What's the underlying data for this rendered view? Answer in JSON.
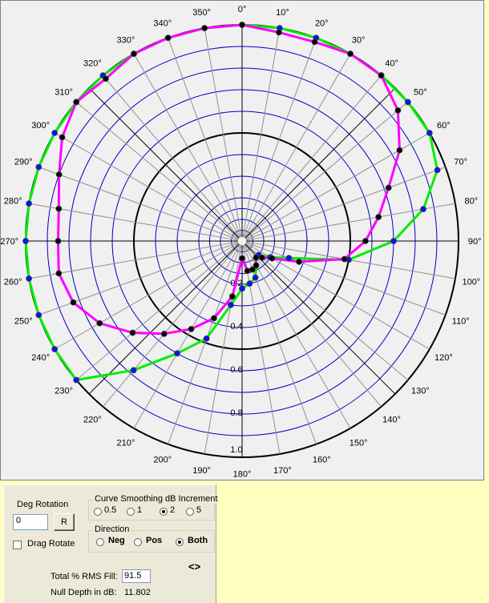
{
  "chart_data": {
    "type": "polar",
    "angle_labels": [
      "0°",
      "10°",
      "20°",
      "30°",
      "40°",
      "50°",
      "60°",
      "70°",
      "80°",
      "90°",
      "100°",
      "110°",
      "120°",
      "130°",
      "140°",
      "150°",
      "160°",
      "170°",
      "180°",
      "190°",
      "200°",
      "210°",
      "220°",
      "230°",
      "240°",
      "250°",
      "260°",
      "270°",
      "280°",
      "290°",
      "300°",
      "310°",
      "320°",
      "330°",
      "340°",
      "350°"
    ],
    "radial_labels": [
      "0.2",
      "0.4",
      "0.6",
      "0.8",
      "1.0"
    ],
    "r_max": 1.0,
    "grid": true,
    "series": [
      {
        "color": "#00ee00",
        "marker_color": "#1010ff",
        "points": [
          [
            40,
            1.0
          ],
          [
            50,
            1.0
          ],
          [
            60,
            1.0
          ],
          [
            70,
            0.96
          ],
          [
            80,
            0.85
          ],
          [
            90,
            0.7
          ],
          [
            100,
            0.5
          ],
          [
            110,
            0.23
          ],
          [
            120,
            0.15
          ],
          [
            130,
            0.1
          ],
          [
            140,
            0.1
          ],
          [
            150,
            0.13
          ],
          [
            160,
            0.18
          ],
          [
            170,
            0.2
          ],
          [
            180,
            0.22
          ],
          [
            190,
            0.3
          ],
          [
            200,
            0.48
          ],
          [
            210,
            0.6
          ],
          [
            220,
            0.78
          ],
          [
            230,
            1.0
          ],
          [
            240,
            1.0
          ],
          [
            250,
            1.0
          ],
          [
            260,
            1.0
          ],
          [
            270,
            1.0
          ],
          [
            280,
            1.0
          ],
          [
            290,
            1.0
          ],
          [
            300,
            1.0
          ],
          [
            310,
            1.0
          ],
          [
            320,
            1.0
          ],
          [
            330,
            1.0
          ],
          [
            340,
            1.0
          ],
          [
            350,
            1.0
          ],
          [
            0,
            1.0
          ],
          [
            10,
            1.0
          ],
          [
            20,
            1.0
          ],
          [
            30,
            1.0
          ],
          [
            40,
            1.0
          ]
        ]
      },
      {
        "color": "#ff00ff",
        "marker_color": "#000000",
        "points": [
          [
            0,
            1.0
          ],
          [
            10,
            0.98
          ],
          [
            20,
            0.98
          ],
          [
            30,
            1.0
          ],
          [
            40,
            1.0
          ],
          [
            50,
            0.94
          ],
          [
            60,
            0.84
          ],
          [
            70,
            0.72
          ],
          [
            80,
            0.64
          ],
          [
            90,
            0.57
          ],
          [
            100,
            0.48
          ],
          [
            110,
            0.28
          ],
          [
            120,
            0.16
          ],
          [
            130,
            0.12
          ],
          [
            140,
            0.1
          ],
          [
            150,
            0.13
          ],
          [
            160,
            0.14
          ],
          [
            170,
            0.14
          ],
          [
            180,
            0.08
          ],
          [
            190,
            0.26
          ],
          [
            200,
            0.38
          ],
          [
            210,
            0.47
          ],
          [
            220,
            0.56
          ],
          [
            230,
            0.66
          ],
          [
            240,
            0.76
          ],
          [
            250,
            0.83
          ],
          [
            260,
            0.86
          ],
          [
            270,
            0.85
          ],
          [
            280,
            0.86
          ],
          [
            290,
            0.9
          ],
          [
            300,
            0.96
          ],
          [
            310,
            1.0
          ],
          [
            320,
            0.98
          ],
          [
            330,
            1.0
          ],
          [
            340,
            1.0
          ],
          [
            350,
            1.0
          ],
          [
            0,
            1.0
          ]
        ]
      }
    ]
  },
  "controls": {
    "deg_rotation_label": "Deg Rotation",
    "deg_rotation_value": "0",
    "r_button": "R",
    "drag_rotate_label": "Drag Rotate",
    "drag_rotate_checked": false,
    "smoothing": {
      "title": "Curve Smoothing dB Increment",
      "options": [
        "0.5",
        "1",
        "2",
        "5"
      ],
      "selected": "2"
    },
    "direction": {
      "title": "Direction",
      "options": [
        "Neg",
        "Pos",
        "Both"
      ],
      "selected": "Both"
    },
    "rms_fill_label": "Total % RMS Fill:",
    "rms_fill_value": "91.5",
    "null_depth_label": "Null Depth in dB:",
    "null_depth_value": "11.802",
    "arrows_glyph": "<>"
  }
}
